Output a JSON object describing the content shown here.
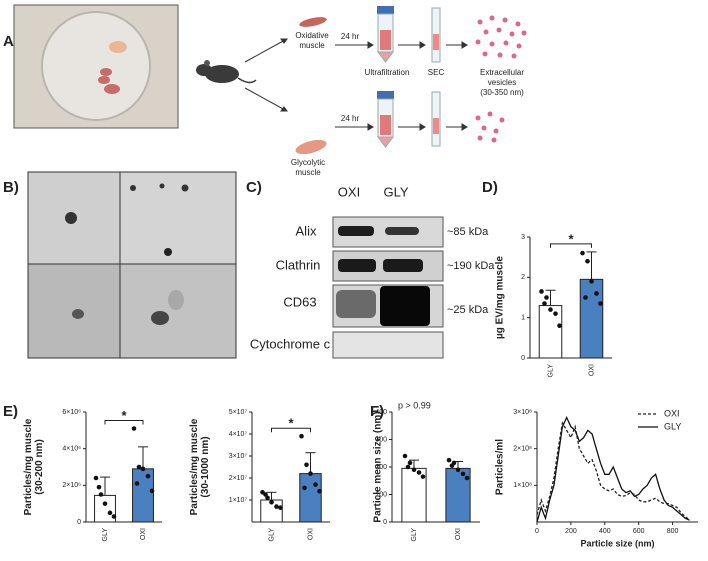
{
  "panel_labels": [
    "A)",
    "B)",
    "C)",
    "D)",
    "E)",
    "F)"
  ],
  "panel_a": {
    "muscle_top": [
      "Oxidative",
      "muscle"
    ],
    "muscle_bottom": [
      "Glycolytic",
      "muscle"
    ],
    "time_top": "24 hr",
    "time_bottom": "24 hr",
    "step1": "Ultrafiltration",
    "step2": "SEC",
    "product": [
      "Extracellular",
      "vesicles",
      "(30-350 nm)"
    ]
  },
  "panel_c": {
    "lanes": [
      "OXI",
      "GLY"
    ],
    "rows": [
      {
        "protein": "Alix",
        "size": "~85 kDa"
      },
      {
        "protein": "Clathrin",
        "size": "~190 kDa"
      },
      {
        "protein": "CD63",
        "size": "~25 kDa"
      },
      {
        "protein": "Cytochrome c"
      }
    ]
  },
  "chart_data": [
    {
      "type": "bar",
      "ylabel": [
        "µg EV/mg muscle"
      ],
      "categories": [
        "GLY",
        "OXI"
      ],
      "values": [
        1.3,
        1.95
      ],
      "errors": [
        0.38,
        0.68
      ],
      "points": [
        [
          1.65,
          1.5,
          1.2,
          1.1,
          0.8,
          1.35
        ],
        [
          2.6,
          2.4,
          1.9,
          1.6,
          1.35,
          1.5
        ]
      ],
      "colors": [
        "#ffffff",
        "#4a7fc0"
      ],
      "ylim": [
        0,
        3
      ],
      "yticks": [
        0,
        1,
        2,
        3
      ],
      "annotation": "*"
    },
    {
      "type": "bar",
      "ylabel": [
        "Particles/mg muscle",
        "(30-200 nm)"
      ],
      "categories": [
        "GLY",
        "OXI"
      ],
      "values": [
        1450000,
        2900000
      ],
      "errors": [
        1000000,
        1200000
      ],
      "points": [
        [
          2400000,
          1500000,
          1000000,
          500000,
          300000,
          1900000
        ],
        [
          5100000,
          3000000,
          2900000,
          2500000,
          1700000,
          2100000
        ]
      ],
      "colors": [
        "#ffffff",
        "#4a7fc0"
      ],
      "ylim": [
        0,
        6000000
      ],
      "yticks": [
        0,
        {
          "value": 2000000,
          "label": "2×10⁶"
        },
        {
          "value": 4000000,
          "label": "4×10⁶"
        },
        {
          "value": 6000000,
          "label": "6×10⁶"
        }
      ],
      "annotation": "*"
    },
    {
      "type": "bar",
      "ylabel": [
        "Particles/mg muscle",
        "(30-1000 nm)"
      ],
      "categories": [
        "GLY",
        "OXI"
      ],
      "values": [
        10000000,
        22000000
      ],
      "errors": [
        3500000,
        9500000
      ],
      "points": [
        [
          13500000,
          11000000,
          9000000,
          7000000,
          6500000,
          12500000
        ],
        [
          39000000,
          26000000,
          22000000,
          17000000,
          14000000,
          15500000
        ]
      ],
      "colors": [
        "#ffffff",
        "#4a7fc0"
      ],
      "ylim": [
        0,
        50000000
      ],
      "yticks": [
        {
          "value": 10000000,
          "label": "1×10⁷"
        },
        {
          "value": 20000000,
          "label": "2×10⁷"
        },
        {
          "value": 30000000,
          "label": "3×10⁷"
        },
        {
          "value": 40000000,
          "label": "4×10⁷"
        },
        {
          "value": 50000000,
          "label": "5×10⁷"
        }
      ],
      "annotation": "*"
    },
    {
      "type": "bar",
      "ylabel": [
        "Particle mean size (nm)"
      ],
      "categories": [
        "GLY",
        "OXI"
      ],
      "values": [
        195,
        195
      ],
      "errors": [
        30,
        25
      ],
      "points": [
        [
          240,
          215,
          190,
          180,
          165,
          200
        ],
        [
          225,
          215,
          190,
          175,
          160,
          205
        ]
      ],
      "colors": [
        "#ffffff",
        "#4a7fc0"
      ],
      "ylim": [
        0,
        400
      ],
      "yticks": [
        0,
        100,
        200,
        300,
        400
      ],
      "annotation": "p > 0.99"
    },
    {
      "type": "line",
      "xlabel": "Particle size (nm)",
      "ylabel": [
        "Particles/ml"
      ],
      "x": [
        0,
        25,
        50,
        75,
        100,
        125,
        150,
        175,
        200,
        225,
        250,
        275,
        300,
        325,
        350,
        375,
        400,
        425,
        450,
        475,
        500,
        525,
        550,
        575,
        600,
        625,
        650,
        675,
        700,
        725,
        750,
        775,
        800,
        825,
        850,
        875,
        900
      ],
      "series": [
        {
          "name": "OXI",
          "color": "#222222",
          "style": "dashed",
          "values": [
            20000000.0,
            60000000.0,
            30000000.0,
            70000000.0,
            120000000.0,
            200000000.0,
            270000000.0,
            250000000.0,
            230000000.0,
            260000000.0,
            200000000.0,
            180000000.0,
            160000000.0,
            170000000.0,
            140000000.0,
            100000000.0,
            90000000.0,
            85000000.0,
            90000000.0,
            75000000.0,
            70000000.0,
            72000000.0,
            80000000.0,
            75000000.0,
            60000000.0,
            55000000.0,
            55000000.0,
            60000000.0,
            65000000.0,
            55000000.0,
            50000000.0,
            50000000.0,
            45000000.0,
            40000000.0,
            25000000.0,
            15000000.0,
            5000000.0
          ]
        },
        {
          "name": "GLY",
          "color": "#111111",
          "style": "solid",
          "values": [
            0,
            40000000.0,
            10000000.0,
            60000000.0,
            100000000.0,
            180000000.0,
            260000000.0,
            285000000.0,
            260000000.0,
            250000000.0,
            220000000.0,
            230000000.0,
            250000000.0,
            240000000.0,
            200000000.0,
            160000000.0,
            130000000.0,
            130000000.0,
            150000000.0,
            120000000.0,
            90000000.0,
            80000000.0,
            85000000.0,
            70000000.0,
            75000000.0,
            90000000.0,
            100000000.0,
            120000000.0,
            130000000.0,
            90000000.0,
            60000000.0,
            45000000.0,
            40000000.0,
            30000000.0,
            20000000.0,
            10000000.0,
            5000000.0
          ]
        }
      ],
      "xlim": [
        0,
        950
      ],
      "xticks": [
        0,
        200,
        400,
        600,
        800
      ],
      "ylim": [
        0,
        300000000
      ],
      "yticks": [
        {
          "value": 100000000,
          "label": "1×10⁸"
        },
        {
          "value": 200000000,
          "label": "2×10⁸"
        },
        {
          "value": 300000000,
          "label": "3×10⁸"
        }
      ],
      "legend": "upper right"
    }
  ]
}
